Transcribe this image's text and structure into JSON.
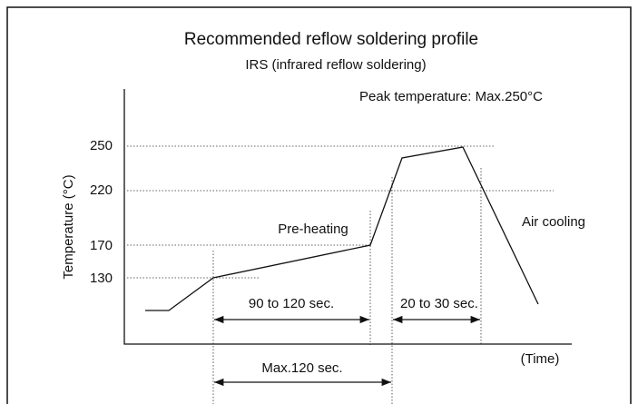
{
  "title": "Recommended reflow soldering profile",
  "subtitle": "IRS (infrared reflow soldering)",
  "peak_note": "Peak temperature: Max.250°C",
  "y_axis_label": "Temperature (°C)",
  "x_axis_label": "(Time)",
  "y_labels": [
    "250",
    "220",
    "170",
    "130"
  ],
  "phases": [
    "Pre-heating",
    "Air cooling"
  ],
  "durations": [
    "90 to 120 sec.",
    "20 to 30 sec.",
    "Max.120 sec."
  ]
}
